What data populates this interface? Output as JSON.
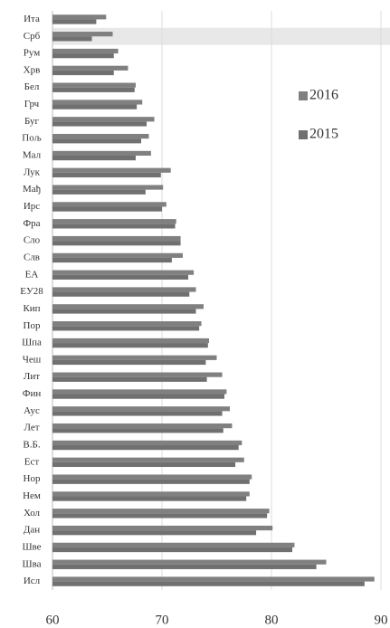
{
  "chart_data": {
    "type": "hbar",
    "categories": [
      "Ита",
      "Срб",
      "Рум",
      "Хрв",
      "Бел",
      "Грч",
      "Буг",
      "Пољ",
      "Мал",
      "Лук",
      "Мађ",
      "Ирс",
      "Фра",
      "Сло",
      "Слв",
      "ЕА",
      "ЕУ28",
      "Кип",
      "Пор",
      "Шпа",
      "Чеш",
      "Лит",
      "Фин",
      "Аус",
      "Лет",
      "В.Б.",
      "Ест",
      "Нор",
      "Нем",
      "Хол",
      "Дан",
      "Шве",
      "Шва",
      "Исл"
    ],
    "series": [
      {
        "name": "2016",
        "color": "#808080",
        "values": [
          64.9,
          65.5,
          66.0,
          66.9,
          67.6,
          68.2,
          69.3,
          68.8,
          69.0,
          70.8,
          70.1,
          70.4,
          71.3,
          71.7,
          71.9,
          72.9,
          73.1,
          73.8,
          73.6,
          74.3,
          75.0,
          75.5,
          75.9,
          76.2,
          76.4,
          77.3,
          77.5,
          78.2,
          78.0,
          79.8,
          80.1,
          82.1,
          85.0,
          89.4
        ]
      },
      {
        "name": "2015",
        "color": "#707070",
        "values": [
          64.0,
          63.6,
          65.6,
          65.6,
          67.5,
          67.7,
          68.6,
          68.1,
          67.6,
          69.9,
          68.5,
          70.0,
          71.2,
          71.7,
          70.9,
          72.4,
          72.5,
          73.1,
          73.4,
          74.2,
          74.0,
          74.1,
          75.7,
          75.5,
          75.6,
          77.0,
          76.7,
          78.0,
          77.7,
          79.6,
          78.6,
          81.9,
          84.1,
          88.5
        ]
      }
    ],
    "xlim": [
      60,
      90
    ],
    "xticks": [
      60,
      70,
      80,
      90
    ],
    "grid": true,
    "legend": "right",
    "highlight": 1
  }
}
